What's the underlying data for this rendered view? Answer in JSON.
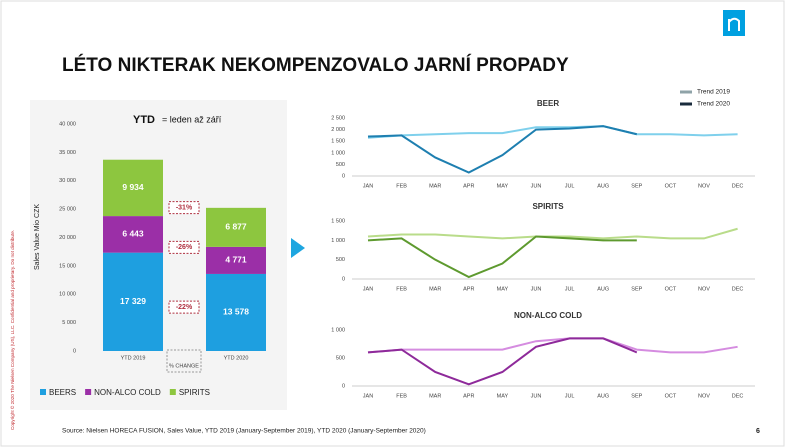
{
  "header": {
    "title": "LÉTO NIKTERAK NEKOMPENZOVALO JARNÍ PROPADY"
  },
  "copyright": "Copyright © 2020 The Nielsen Company (US), LLC. Confidential and proprietary. Do not distribute.",
  "footer": {
    "source": "Source: Nielsen HORECA FUSION, Sales Value, YTD 2019 (January-September 2019), YTD 2020 (January-September 2020)",
    "page": "6"
  },
  "chart_data": [
    {
      "type": "stacked_bar",
      "title_bold": "YTD",
      "title": "= leden až září",
      "y_label": "Sales Value Mio CZK",
      "categories": [
        "YTD 2019",
        "YTD 2020"
      ],
      "series": [
        {
          "name": "BEERS",
          "color": "#1e9fe0",
          "values": [
            17329,
            13578
          ],
          "value_labels": [
            "17 329",
            "13 578"
          ]
        },
        {
          "name": "NON-ALCO COLD",
          "color": "#9b2fa7",
          "values": [
            6443,
            4771
          ],
          "value_labels": [
            "6 443",
            "4 771"
          ]
        },
        {
          "name": "SPIRITS",
          "color": "#8dc63f",
          "values": [
            9934,
            6877
          ],
          "value_labels": [
            "9 934",
            "6 877"
          ]
        }
      ],
      "change_title": "% CHANGE",
      "change_labels": [
        "-22%",
        "-26%",
        "-31%"
      ],
      "ylim": [
        0,
        40000
      ],
      "yticks": [
        0,
        {
          "value": 5000,
          "label": "5 000"
        },
        {
          "value": 10000,
          "label": "10 000"
        },
        {
          "value": 15000,
          "label": "15 000"
        },
        {
          "value": 20000,
          "label": "20 000"
        },
        {
          "value": 25000,
          "label": "25 000"
        },
        {
          "value": 30000,
          "label": "30 000"
        },
        {
          "value": 35000,
          "label": "35 000"
        },
        {
          "value": 40000,
          "label": "40 000"
        }
      ],
      "legend": "bottom"
    },
    {
      "type": "line",
      "title": "BEER",
      "categories": [
        "JAN",
        "FEB",
        "MAR",
        "APR",
        "MAY",
        "JUN",
        "JUL",
        "AUG",
        "SEP",
        "OCT",
        "NOV",
        "DEC"
      ],
      "series": [
        {
          "name": "Trend 2019",
          "color": "#7fd0ec",
          "values": [
            1650,
            1750,
            1800,
            1850,
            1850,
            2100,
            2100,
            2150,
            1800,
            1800,
            1750,
            1800
          ]
        },
        {
          "name": "Trend 2020",
          "color": "#1e7fb0",
          "values": [
            1700,
            1750,
            800,
            150,
            900,
            2000,
            2050,
            2150,
            1800,
            null,
            null,
            null
          ]
        }
      ],
      "legend_colors": [
        "#8fa3a8",
        "#1a2b3c"
      ],
      "legend": "top-right",
      "ylim": [
        0,
        2500
      ],
      "yticks": [
        0,
        {
          "value": 500,
          "label": "500"
        },
        {
          "value": 1000,
          "label": "1 000"
        },
        {
          "value": 1500,
          "label": "1 500"
        },
        {
          "value": 2000,
          "label": "2 000"
        },
        {
          "value": 2500,
          "label": "2 500"
        }
      ]
    },
    {
      "type": "line",
      "title": "SPIRITS",
      "categories": [
        "JAN",
        "FEB",
        "MAR",
        "APR",
        "MAY",
        "JUN",
        "JUL",
        "AUG",
        "SEP",
        "OCT",
        "NOV",
        "DEC"
      ],
      "series": [
        {
          "color": "#b9dc8a",
          "values": [
            1100,
            1150,
            1150,
            1100,
            1050,
            1100,
            1100,
            1050,
            1100,
            1050,
            1050,
            1300
          ]
        },
        {
          "color": "#5e9a2f",
          "values": [
            1000,
            1050,
            500,
            50,
            400,
            1100,
            1050,
            1000,
            1000,
            null,
            null,
            null
          ]
        }
      ],
      "ylim": [
        0,
        1500
      ],
      "yticks": [
        0,
        500,
        {
          "value": 1000,
          "label": "1 000"
        },
        {
          "value": 1500,
          "label": "1 500"
        }
      ]
    },
    {
      "type": "line",
      "title": "NON-ALCO COLD",
      "categories": [
        "JAN",
        "FEB",
        "MAR",
        "APR",
        "MAY",
        "JUN",
        "JUL",
        "AUG",
        "SEP",
        "OCT",
        "NOV",
        "DEC"
      ],
      "series": [
        {
          "color": "#d58ce0",
          "values": [
            600,
            650,
            650,
            650,
            650,
            800,
            850,
            850,
            650,
            600,
            600,
            700
          ]
        },
        {
          "color": "#8e2a9a",
          "values": [
            600,
            650,
            250,
            30,
            250,
            700,
            850,
            850,
            600,
            null,
            null,
            null
          ]
        }
      ],
      "ylim": [
        0,
        1000
      ],
      "yticks": [
        0,
        500,
        {
          "value": 1000,
          "label": "1 000"
        }
      ]
    }
  ]
}
